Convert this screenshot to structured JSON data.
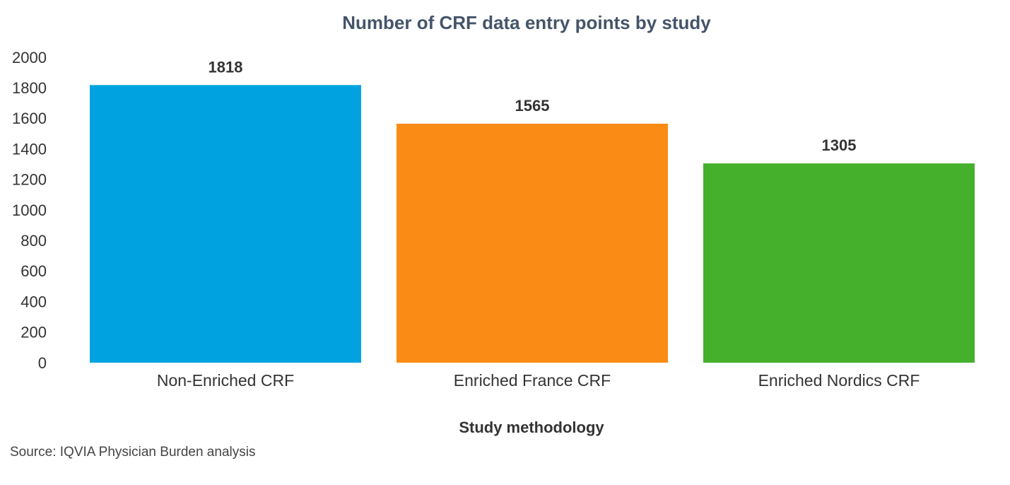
{
  "chart_data": {
    "type": "bar",
    "title": "Number of CRF data entry points by study",
    "xlabel": "Study methodology",
    "ylabel": "",
    "categories": [
      "Non-Enriched CRF",
      "Enriched France CRF",
      "Enriched Nordics CRF"
    ],
    "values": [
      1818,
      1565,
      1305
    ],
    "data_labels": [
      "1818",
      "1565",
      "1305"
    ],
    "colors": [
      "#00a3e0",
      "#fa8c16",
      "#45b02b"
    ],
    "ylim": [
      0,
      2000
    ],
    "yticks": [
      0,
      200,
      400,
      600,
      800,
      1000,
      1200,
      1400,
      1600,
      1800,
      2000
    ],
    "grid": false,
    "legend": "none"
  },
  "source": "Source: IQVIA Physician Burden analysis"
}
